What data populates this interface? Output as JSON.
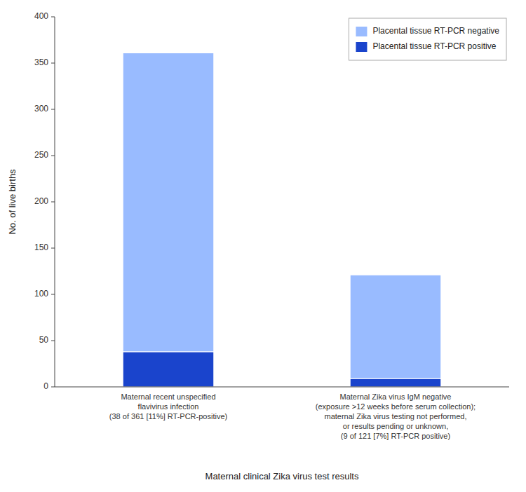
{
  "chart_data": {
    "type": "bar",
    "stacked": true,
    "categories": [
      "Maternal recent unspecified\nflavivirus infection\n(38 of 361 [11%] RT-PCR-positive)",
      "Maternal Zika virus IgM negative\n(exposure >12 weeks before serum collection);\nmaternal Zika virus testing not performed,\nor results pending or unknown,\n(9 of 121 [7%] RT-PCR positive)"
    ],
    "series": [
      {
        "name": "Placental tissue RT-PCR positive",
        "color": "#1a44cc",
        "values": [
          38,
          9
        ]
      },
      {
        "name": "Placental tissue RT-PCR negative",
        "color": "#99bbff",
        "values": [
          323,
          112
        ]
      }
    ],
    "xlabel": "Maternal clinical Zika virus test results",
    "ylabel": "No. of live births",
    "ylim": [
      0,
      400
    ],
    "yticks": [
      0,
      50,
      100,
      150,
      200,
      250,
      300,
      350,
      400
    ],
    "legend": "upper right",
    "grid": false
  }
}
